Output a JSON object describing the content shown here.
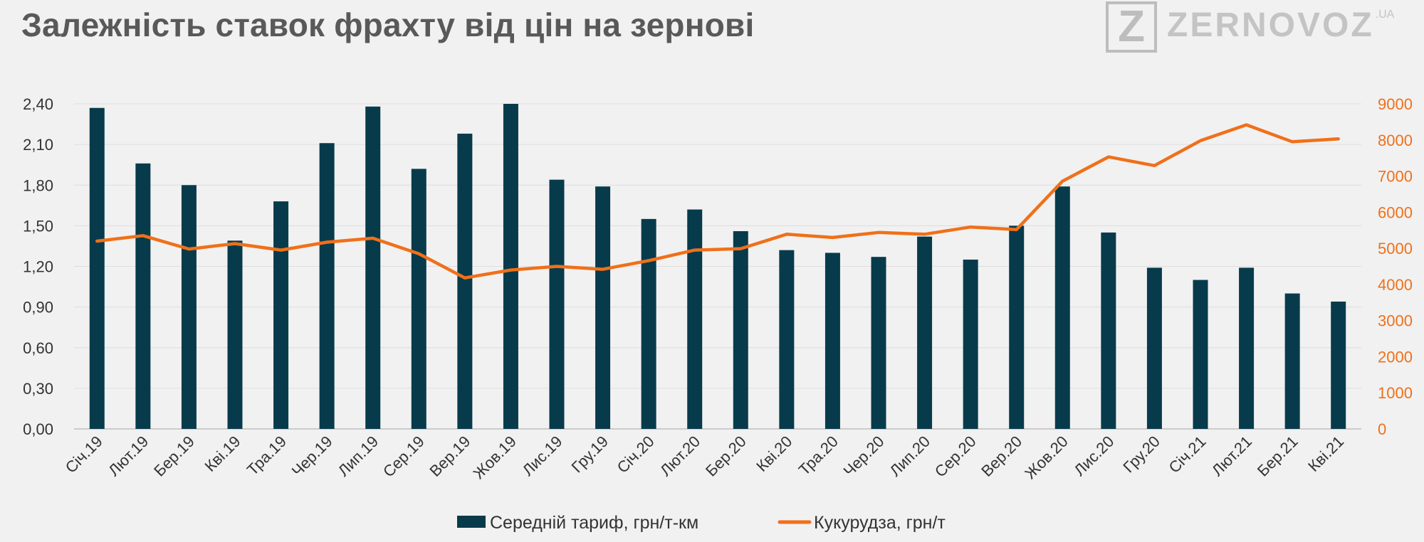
{
  "header": {
    "title": "Залежність ставок фрахту від цін на зернові",
    "logo_letter": "Z",
    "logo_text": "ZERNOVOZ",
    "logo_suffix": ".UA"
  },
  "chart_data": {
    "type": "bar",
    "title": "Залежність ставок фрахту від цін на зернові",
    "categories": [
      "Січ.19",
      "Лют.19",
      "Бер.19",
      "Кві.19",
      "Тра.19",
      "Чер.19",
      "Лип.19",
      "Сер.19",
      "Вер.19",
      "Жов.19",
      "Лис.19",
      "Гру.19",
      "Січ.20",
      "Лют.20",
      "Бер.20",
      "Кві.20",
      "Тра.20",
      "Чер.20",
      "Лип.20",
      "Сер.20",
      "Вер.20",
      "Жов.20",
      "Лис.20",
      "Гру.20",
      "Січ.21",
      "Лют.21",
      "Бер.21",
      "Кві.21"
    ],
    "series": [
      {
        "name": "Середній тариф, грн/т-км",
        "type": "bar",
        "axis": "left",
        "color": "#073b4c",
        "values": [
          2.37,
          1.96,
          1.8,
          1.39,
          1.68,
          2.11,
          2.38,
          1.92,
          2.18,
          2.4,
          1.84,
          1.79,
          1.55,
          1.62,
          1.46,
          1.32,
          1.3,
          1.27,
          1.42,
          1.25,
          1.5,
          1.79,
          1.45,
          1.19,
          1.1,
          1.19,
          1.0,
          0.94
        ]
      },
      {
        "name": "Кукурудза, грн/т",
        "type": "line",
        "axis": "right",
        "color": "#f07019",
        "values": [
          5200,
          5350,
          4980,
          5130,
          4950,
          5170,
          5280,
          4850,
          4180,
          4400,
          4500,
          4420,
          4660,
          4950,
          4990,
          5390,
          5300,
          5440,
          5390,
          5590,
          5520,
          6860,
          7530,
          7290,
          7980,
          8420,
          7950,
          8030
        ]
      }
    ],
    "ylim_left": [
      0,
      2.4
    ],
    "ylim_right": [
      0,
      9000
    ],
    "yticks_left": [
      "0,00",
      "0,30",
      "0,60",
      "0,90",
      "1,20",
      "1,50",
      "1,80",
      "2,10",
      "2,40"
    ],
    "yticks_right": [
      "0",
      "1000",
      "2000",
      "3000",
      "4000",
      "5000",
      "6000",
      "7000",
      "8000",
      "9000"
    ],
    "grid": true,
    "legend_position": "bottom"
  }
}
